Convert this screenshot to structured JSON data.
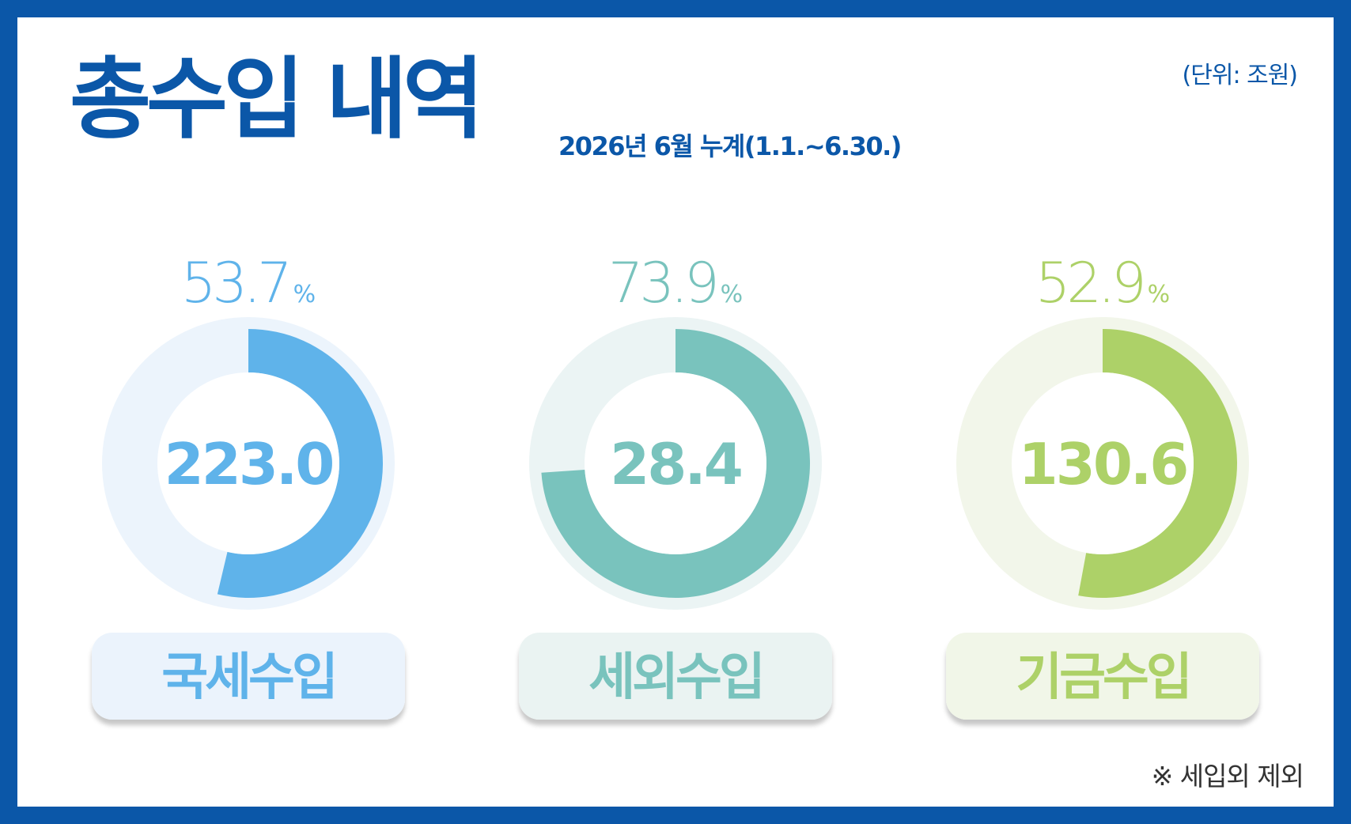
{
  "header": {
    "title": "총수입 내역",
    "subtitle": "2026년 6월 누계(1.1.~6.30.)",
    "unit": "(단위: 조원)"
  },
  "footnote": "※ 세입외 제외",
  "chart_data": {
    "type": "pie",
    "subtype": "donut",
    "unit": "조원",
    "items": [
      {
        "name": "국세수입",
        "value": 223.0,
        "value_label": "223.0",
        "percent": 53.7,
        "percent_label": "53.7",
        "color": "#5fb3ea",
        "track": "#ecf4fc",
        "label_bg": "#ebf3fc"
      },
      {
        "name": "세외수입",
        "value": 28.4,
        "value_label": "28.4",
        "percent": 73.9,
        "percent_label": "73.9",
        "color": "#79c3bd",
        "track": "#ebf4f4",
        "label_bg": "#eaf3f2"
      },
      {
        "name": "기금수입",
        "value": 130.6,
        "value_label": "130.6",
        "percent": 52.9,
        "percent_label": "52.9",
        "color": "#add168",
        "track": "#f2f6ea",
        "label_bg": "#f1f6e8"
      }
    ],
    "percent_sign": "%"
  },
  "colors": {
    "frame": "#0b57a8",
    "title": "#0b57a8"
  }
}
